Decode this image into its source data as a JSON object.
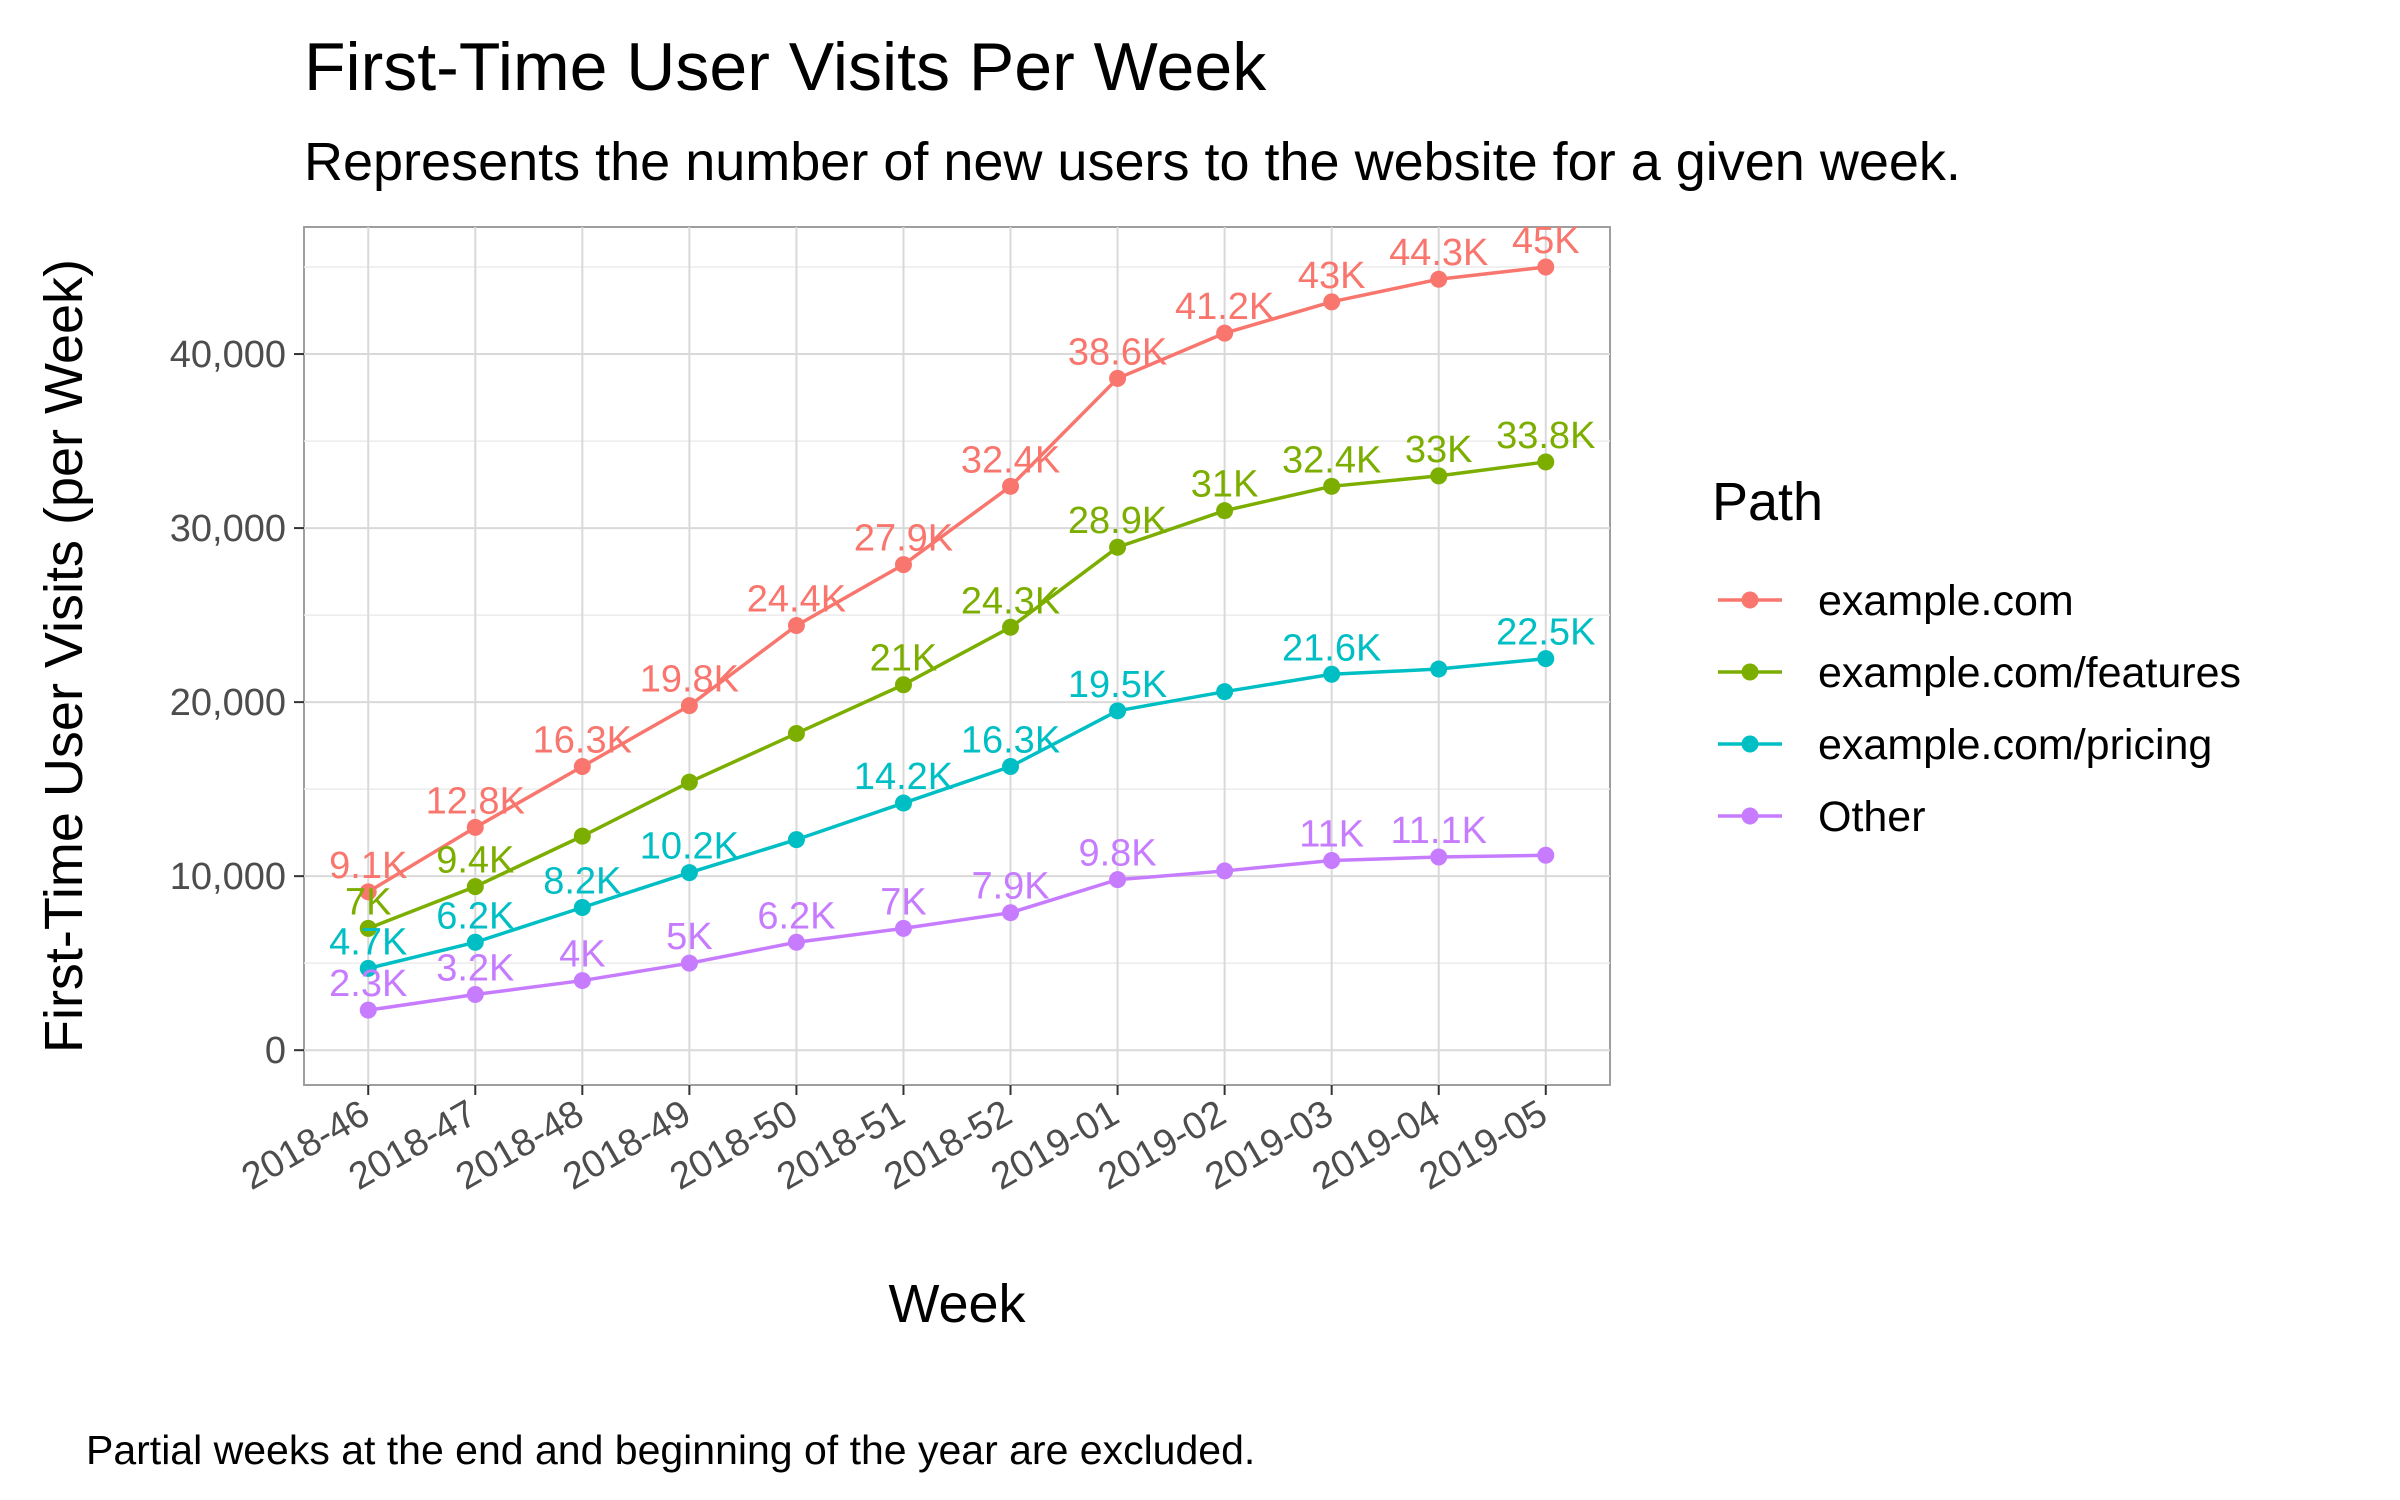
{
  "chart_data": {
    "type": "line",
    "title": "First-Time User Visits Per Week",
    "subtitle": "Represents the number of new users to the website for a given week.",
    "caption": "Partial weeks at the end and beginning of the year are excluded.",
    "xlabel": "Week",
    "ylabel": "First-Time User Visits (per Week)",
    "categories": [
      "2018-46",
      "2018-47",
      "2018-48",
      "2018-49",
      "2018-50",
      "2018-51",
      "2018-52",
      "2019-01",
      "2019-02",
      "2019-03",
      "2019-04",
      "2019-05"
    ],
    "ylim": [
      -2000,
      47300
    ],
    "yticks": [
      0,
      10000,
      20000,
      30000,
      40000
    ],
    "ytick_labels": [
      "0",
      "10,000",
      "20,000",
      "30,000",
      "40,000"
    ],
    "grid": true,
    "legend_title": "Path",
    "legend_position": "right",
    "series": [
      {
        "name": "example.com",
        "color": "#F8766D",
        "values": [
          9100,
          12800,
          16300,
          19800,
          24400,
          27900,
          32400,
          38600,
          41200,
          43000,
          44300,
          45000
        ],
        "labels": [
          "9.1K",
          "12.8K",
          "16.3K",
          "19.8K",
          "24.4K",
          "27.9K",
          "32.4K",
          "38.6K",
          "41.2K",
          "43K",
          "44.3K",
          "45K"
        ]
      },
      {
        "name": "example.com/features",
        "color": "#7CAE00",
        "values": [
          7000,
          9400,
          12300,
          15400,
          18200,
          21000,
          24300,
          28900,
          31000,
          32400,
          33000,
          33800
        ],
        "labels": [
          "7K",
          "9.4K",
          "",
          "",
          "",
          "21K",
          "24.3K",
          "28.9K",
          "31K",
          "32.4K",
          "33K",
          "33.8K"
        ]
      },
      {
        "name": "example.com/pricing",
        "color": "#00BFC4",
        "values": [
          4700,
          6200,
          8200,
          10200,
          12100,
          14200,
          16300,
          19500,
          20600,
          21600,
          21900,
          22500
        ],
        "labels": [
          "4.7K",
          "6.2K",
          "8.2K",
          "10.2K",
          "",
          "14.2K",
          "16.3K",
          "19.5K",
          "",
          "21.6K",
          "",
          "22.5K"
        ]
      },
      {
        "name": "Other",
        "color": "#C77CFF",
        "values": [
          2300,
          3200,
          4000,
          5000,
          6200,
          7000,
          7900,
          9800,
          10300,
          10900,
          11100,
          11200
        ],
        "labels": [
          "2.3K",
          "3.2K",
          "4K",
          "5K",
          "6.2K",
          "7K",
          "7.9K",
          "9.8K",
          "",
          "11K",
          "11.1K",
          ""
        ]
      }
    ]
  }
}
